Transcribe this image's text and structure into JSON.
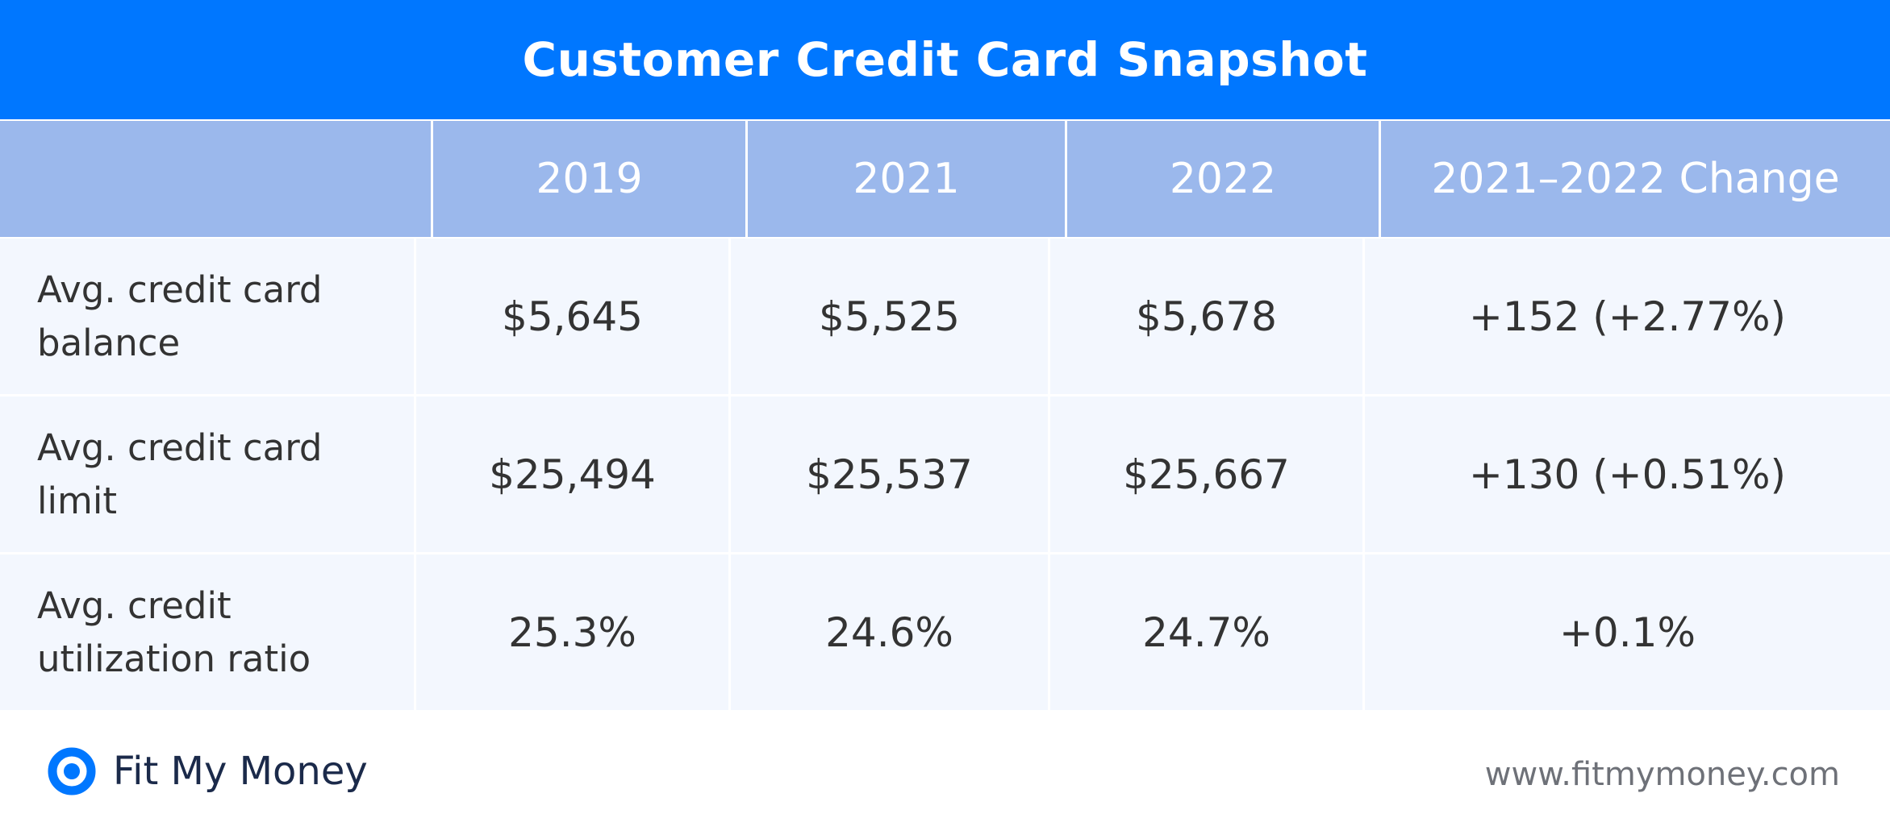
{
  "chart_data": {
    "type": "table",
    "title": "Customer Credit Card Snapshot",
    "columns": [
      "",
      "2019",
      "2021",
      "2022",
      "2021–2022 Change"
    ],
    "rows": [
      {
        "label": "Avg. credit card balance",
        "values": [
          "$5,645",
          "$5,525",
          "$5,678",
          "+152 (+2.77%)"
        ]
      },
      {
        "label": "Avg. credit card limit",
        "values": [
          "$25,494",
          "$25,537",
          "$25,667",
          "+130 (+0.51%)"
        ]
      },
      {
        "label": "Avg. credit utilization ratio",
        "values": [
          "25.3%",
          "24.6%",
          "24.7%",
          "+0.1%"
        ]
      }
    ]
  },
  "footer": {
    "brand": "Fit My Money",
    "url": "www.fitmymoney.com",
    "logo_icon": "ring-logo-icon"
  },
  "colors": {
    "title_bar": "#0077FF",
    "header_row": "#9BB8EC",
    "row_background": "#F3F7FE",
    "text": "#333333",
    "brand_text": "#1B2A4A",
    "url_text": "#6E7178"
  }
}
